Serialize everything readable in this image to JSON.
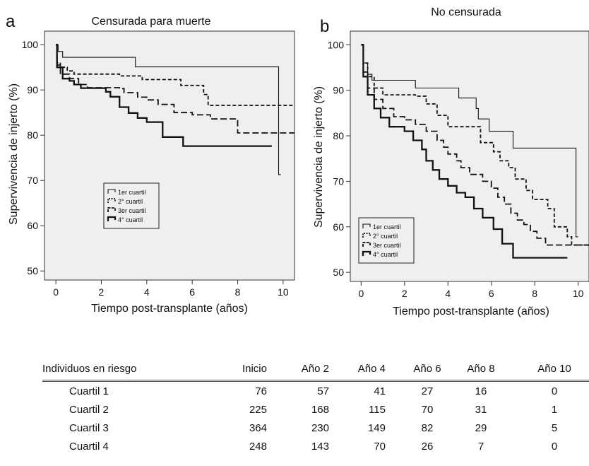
{
  "chart_data": [
    {
      "panel": "a",
      "type": "line",
      "step": true,
      "title": "Censurada para muerte",
      "xlabel": "Tiempo post-transplante (años)",
      "ylabel": "Supervivencia de injerto (%)",
      "xlim": [
        -0.5,
        10.5
      ],
      "ylim": [
        48,
        103
      ],
      "xticks": [
        0,
        2,
        4,
        6,
        8,
        10
      ],
      "yticks": [
        50,
        60,
        70,
        80,
        90,
        100
      ],
      "grid": false,
      "legend": {
        "position": "center-left",
        "entries": [
          "1er cuartil",
          "2° cuartil",
          "3er cuartil",
          "4° cuartil"
        ]
      },
      "series": [
        {
          "name": "1er cuartil",
          "points": [
            [
              0,
              100
            ],
            [
              0.1,
              98.5
            ],
            [
              0.3,
              97.2
            ],
            [
              3.5,
              95.1
            ],
            [
              9.8,
              95.1
            ],
            [
              9.8,
              71.3
            ],
            [
              9.9,
              71.3
            ]
          ]
        },
        {
          "name": "2° cuartil",
          "points": [
            [
              0,
              100
            ],
            [
              0.05,
              96
            ],
            [
              0.2,
              95
            ],
            [
              0.5,
              94.2
            ],
            [
              0.8,
              93.5
            ],
            [
              2.8,
              93.1
            ],
            [
              3.8,
              92.3
            ],
            [
              5.5,
              91
            ],
            [
              6.5,
              89
            ],
            [
              6.7,
              86.6
            ],
            [
              10.5,
              86.6
            ]
          ]
        },
        {
          "name": "3er cuartil",
          "points": [
            [
              0,
              100
            ],
            [
              0.05,
              95.5
            ],
            [
              0.2,
              93.5
            ],
            [
              0.6,
              92.5
            ],
            [
              1,
              91.2
            ],
            [
              1.4,
              90.5
            ],
            [
              2.8,
              90.3
            ],
            [
              3,
              89.4
            ],
            [
              3.6,
              88.4
            ],
            [
              4,
              87.8
            ],
            [
              4.5,
              86.8
            ],
            [
              5.2,
              85
            ],
            [
              6,
              84.5
            ],
            [
              6.8,
              83.6
            ],
            [
              8,
              80.5
            ],
            [
              10.5,
              80.5
            ]
          ]
        },
        {
          "name": "4° cuartil",
          "points": [
            [
              0,
              100
            ],
            [
              0.05,
              95
            ],
            [
              0.3,
              92.5
            ],
            [
              0.6,
              92
            ],
            [
              0.8,
              91.2
            ],
            [
              1.1,
              90.4
            ],
            [
              2.2,
              89.6
            ],
            [
              2.4,
              88.5
            ],
            [
              2.8,
              86.2
            ],
            [
              3.2,
              84.9
            ],
            [
              3.6,
              83.8
            ],
            [
              4,
              82.9
            ],
            [
              4.7,
              79.6
            ],
            [
              5.6,
              77.6
            ],
            [
              9.5,
              77.6
            ]
          ]
        }
      ]
    },
    {
      "panel": "b",
      "type": "line",
      "step": true,
      "title": "No censurada",
      "xlabel": "Tiempo post-transplante (años)",
      "ylabel": "Supervivencia de injerto (%)",
      "xlim": [
        -0.5,
        10.5
      ],
      "ylim": [
        48,
        103
      ],
      "xticks": [
        0,
        2,
        4,
        6,
        8,
        10
      ],
      "yticks": [
        50,
        60,
        70,
        80,
        90,
        100
      ],
      "grid": false,
      "legend": {
        "position": "bottom-left",
        "entries": [
          "1er cuartil",
          "2° cuartil",
          "3er cuartil",
          "4° cuartil"
        ]
      },
      "series": [
        {
          "name": "1er cuartil",
          "points": [
            [
              0,
              100
            ],
            [
              0.1,
              96
            ],
            [
              0.3,
              93.5
            ],
            [
              0.5,
              92.2
            ],
            [
              2,
              92.2
            ],
            [
              2.5,
              90.5
            ],
            [
              4.5,
              88.3
            ],
            [
              5.3,
              86
            ],
            [
              5.4,
              83.7
            ],
            [
              5.9,
              81
            ],
            [
              7,
              77.3
            ],
            [
              9.9,
              77.3
            ],
            [
              9.9,
              57.8
            ],
            [
              10,
              57.8
            ]
          ]
        },
        {
          "name": "2° cuartil",
          "points": [
            [
              0,
              100
            ],
            [
              0.1,
              96
            ],
            [
              0.3,
              93
            ],
            [
              0.6,
              90.5
            ],
            [
              1,
              89
            ],
            [
              2.5,
              88.7
            ],
            [
              3,
              87
            ],
            [
              3.5,
              84.5
            ],
            [
              4,
              82
            ],
            [
              5.5,
              80.5
            ],
            [
              5.5,
              78.5
            ],
            [
              5.8,
              78.5
            ],
            [
              6.1,
              76.5
            ],
            [
              6.4,
              74.5
            ],
            [
              6.8,
              73
            ],
            [
              7.1,
              70.5
            ],
            [
              7.6,
              68
            ],
            [
              7.9,
              66
            ],
            [
              8.6,
              64
            ],
            [
              8.9,
              60
            ],
            [
              9.5,
              57.8
            ],
            [
              9.7,
              56
            ],
            [
              10.5,
              56
            ]
          ]
        },
        {
          "name": "3er cuartil",
          "points": [
            [
              0,
              100
            ],
            [
              0.1,
              94
            ],
            [
              0.3,
              90.5
            ],
            [
              0.6,
              88
            ],
            [
              1,
              86
            ],
            [
              1.5,
              84.2
            ],
            [
              2,
              83.5
            ],
            [
              2.5,
              82.5
            ],
            [
              3,
              81
            ],
            [
              3.5,
              79
            ],
            [
              3.8,
              77.5
            ],
            [
              4,
              76
            ],
            [
              4.4,
              74.5
            ],
            [
              4.6,
              73
            ],
            [
              5,
              71.5
            ],
            [
              5.6,
              70
            ],
            [
              6,
              68.5
            ],
            [
              6.3,
              66.5
            ],
            [
              6.6,
              65
            ],
            [
              6.9,
              63
            ],
            [
              7.2,
              61.5
            ],
            [
              7.5,
              60.5
            ],
            [
              7.8,
              59
            ],
            [
              8.1,
              57.5
            ],
            [
              8.5,
              56
            ],
            [
              10.5,
              55.2
            ]
          ]
        },
        {
          "name": "4° cuartil",
          "points": [
            [
              0,
              100
            ],
            [
              0.1,
              93
            ],
            [
              0.3,
              89
            ],
            [
              0.6,
              86
            ],
            [
              0.9,
              84
            ],
            [
              1.3,
              82
            ],
            [
              2,
              81
            ],
            [
              2.4,
              79
            ],
            [
              2.8,
              77
            ],
            [
              3,
              74.5
            ],
            [
              3.3,
              72.5
            ],
            [
              3.6,
              70.5
            ],
            [
              4,
              69
            ],
            [
              4.4,
              67.5
            ],
            [
              4.8,
              66.5
            ],
            [
              5.2,
              64
            ],
            [
              5.6,
              62
            ],
            [
              6.1,
              59.5
            ],
            [
              6.5,
              56.3
            ],
            [
              7,
              56.3
            ],
            [
              7,
              53.2
            ],
            [
              9.5,
              53.2
            ]
          ]
        }
      ]
    }
  ],
  "panels": [
    {
      "letter": "a",
      "title": "Censurada para muerte",
      "ylabel": "Supervivencia de injerto (%)",
      "xlabel": "Tiempo post-transplante (años)"
    },
    {
      "letter": "b",
      "title": "No censurada",
      "ylabel": "Supervivencia de injerto (%)",
      "xlabel": "Tiempo post-transplante (años)"
    }
  ],
  "legend_labels": [
    "1er cuartil",
    "2° cuartil",
    "3er cuartil",
    "4° cuartil"
  ],
  "risk_table": {
    "headers": [
      "Individuos en riesgo",
      "Inicio",
      "Año 2",
      "Año 4",
      "Año 6",
      "Año 8",
      "Año 10"
    ],
    "rows": [
      {
        "label": "Cuartil 1",
        "values": [
          "76",
          "57",
          "41",
          "27",
          "16",
          "0"
        ]
      },
      {
        "label": "Cuartil 2",
        "values": [
          "225",
          "168",
          "115",
          "70",
          "31",
          "1"
        ]
      },
      {
        "label": "Cuartil 3",
        "values": [
          "364",
          "230",
          "149",
          "82",
          "29",
          "5"
        ]
      },
      {
        "label": "Cuartil 4",
        "values": [
          "248",
          "143",
          "70",
          "26",
          "7",
          "0"
        ]
      }
    ]
  }
}
